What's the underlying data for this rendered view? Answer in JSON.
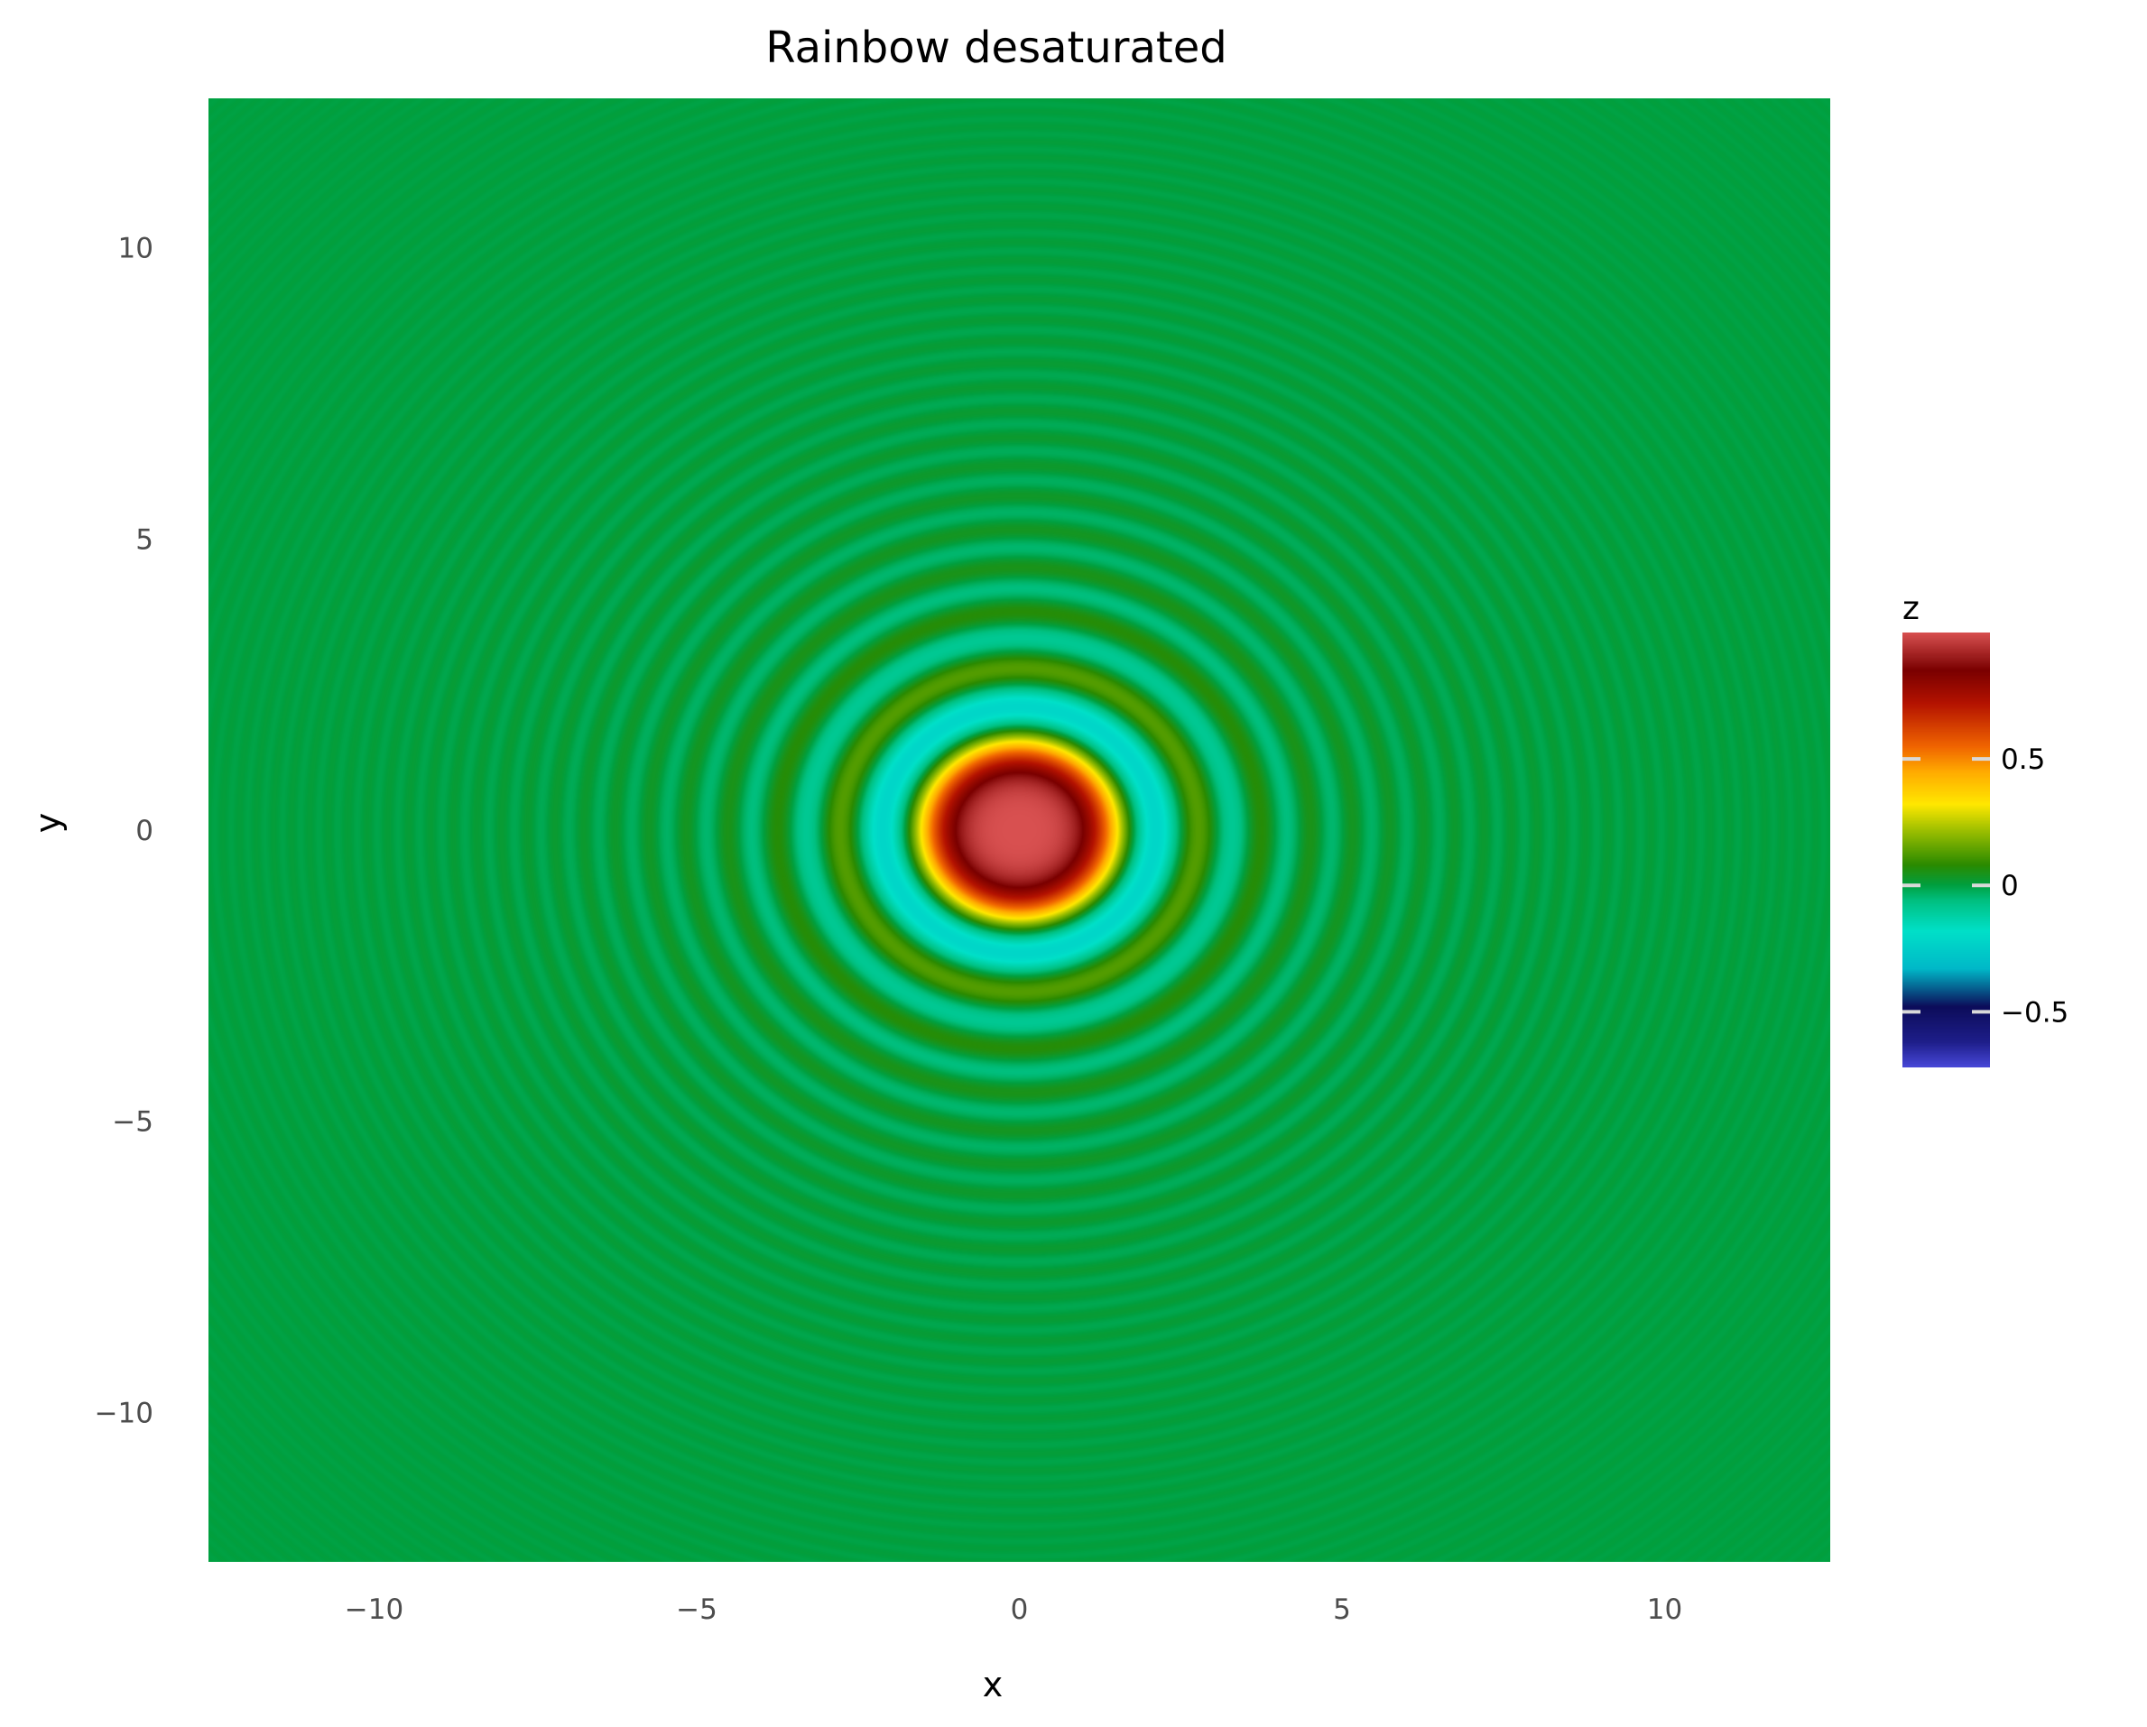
{
  "chart_data": {
    "type": "heatmap",
    "title": "Rainbow desaturated",
    "xlabel": "x",
    "ylabel": "y",
    "function": "z = sin(x^2 + y^2) / (x^2 + y^2)",
    "xlim": [
      -12.566,
      12.566
    ],
    "ylim": [
      -12.566,
      12.566
    ],
    "x_ticks": [
      -10,
      -5,
      0,
      5,
      10
    ],
    "x_tick_labels": [
      "−10",
      "−5",
      "0",
      "5",
      "10"
    ],
    "y_ticks": [
      10,
      5,
      0,
      -5,
      -10
    ],
    "y_tick_labels": [
      "10",
      "5",
      "0",
      "−5",
      "−10"
    ],
    "grid": false,
    "legend": {
      "title": "z",
      "position": "right",
      "range": [
        -0.72,
        1.0
      ],
      "ticks": [
        0.5,
        0,
        -0.5
      ],
      "tick_labels": [
        "0.5",
        "0",
        "−0.5"
      ]
    },
    "colormap_name": "Rainbow desaturated",
    "colormap": [
      [
        -0.72,
        "#4848d8"
      ],
      [
        -0.62,
        "#1e1e8a"
      ],
      [
        -0.48,
        "#0c0c5a"
      ],
      [
        -0.33,
        "#00b8c8"
      ],
      [
        -0.18,
        "#00e0c8"
      ],
      [
        -0.06,
        "#00c080"
      ],
      [
        0.0,
        "#00a040"
      ],
      [
        0.08,
        "#2a8a00"
      ],
      [
        0.22,
        "#a0c000"
      ],
      [
        0.32,
        "#ffe800"
      ],
      [
        0.45,
        "#ffaa00"
      ],
      [
        0.55,
        "#f06400"
      ],
      [
        0.72,
        "#b41200"
      ],
      [
        0.85,
        "#7a0000"
      ],
      [
        1.0,
        "#d85050"
      ]
    ]
  }
}
